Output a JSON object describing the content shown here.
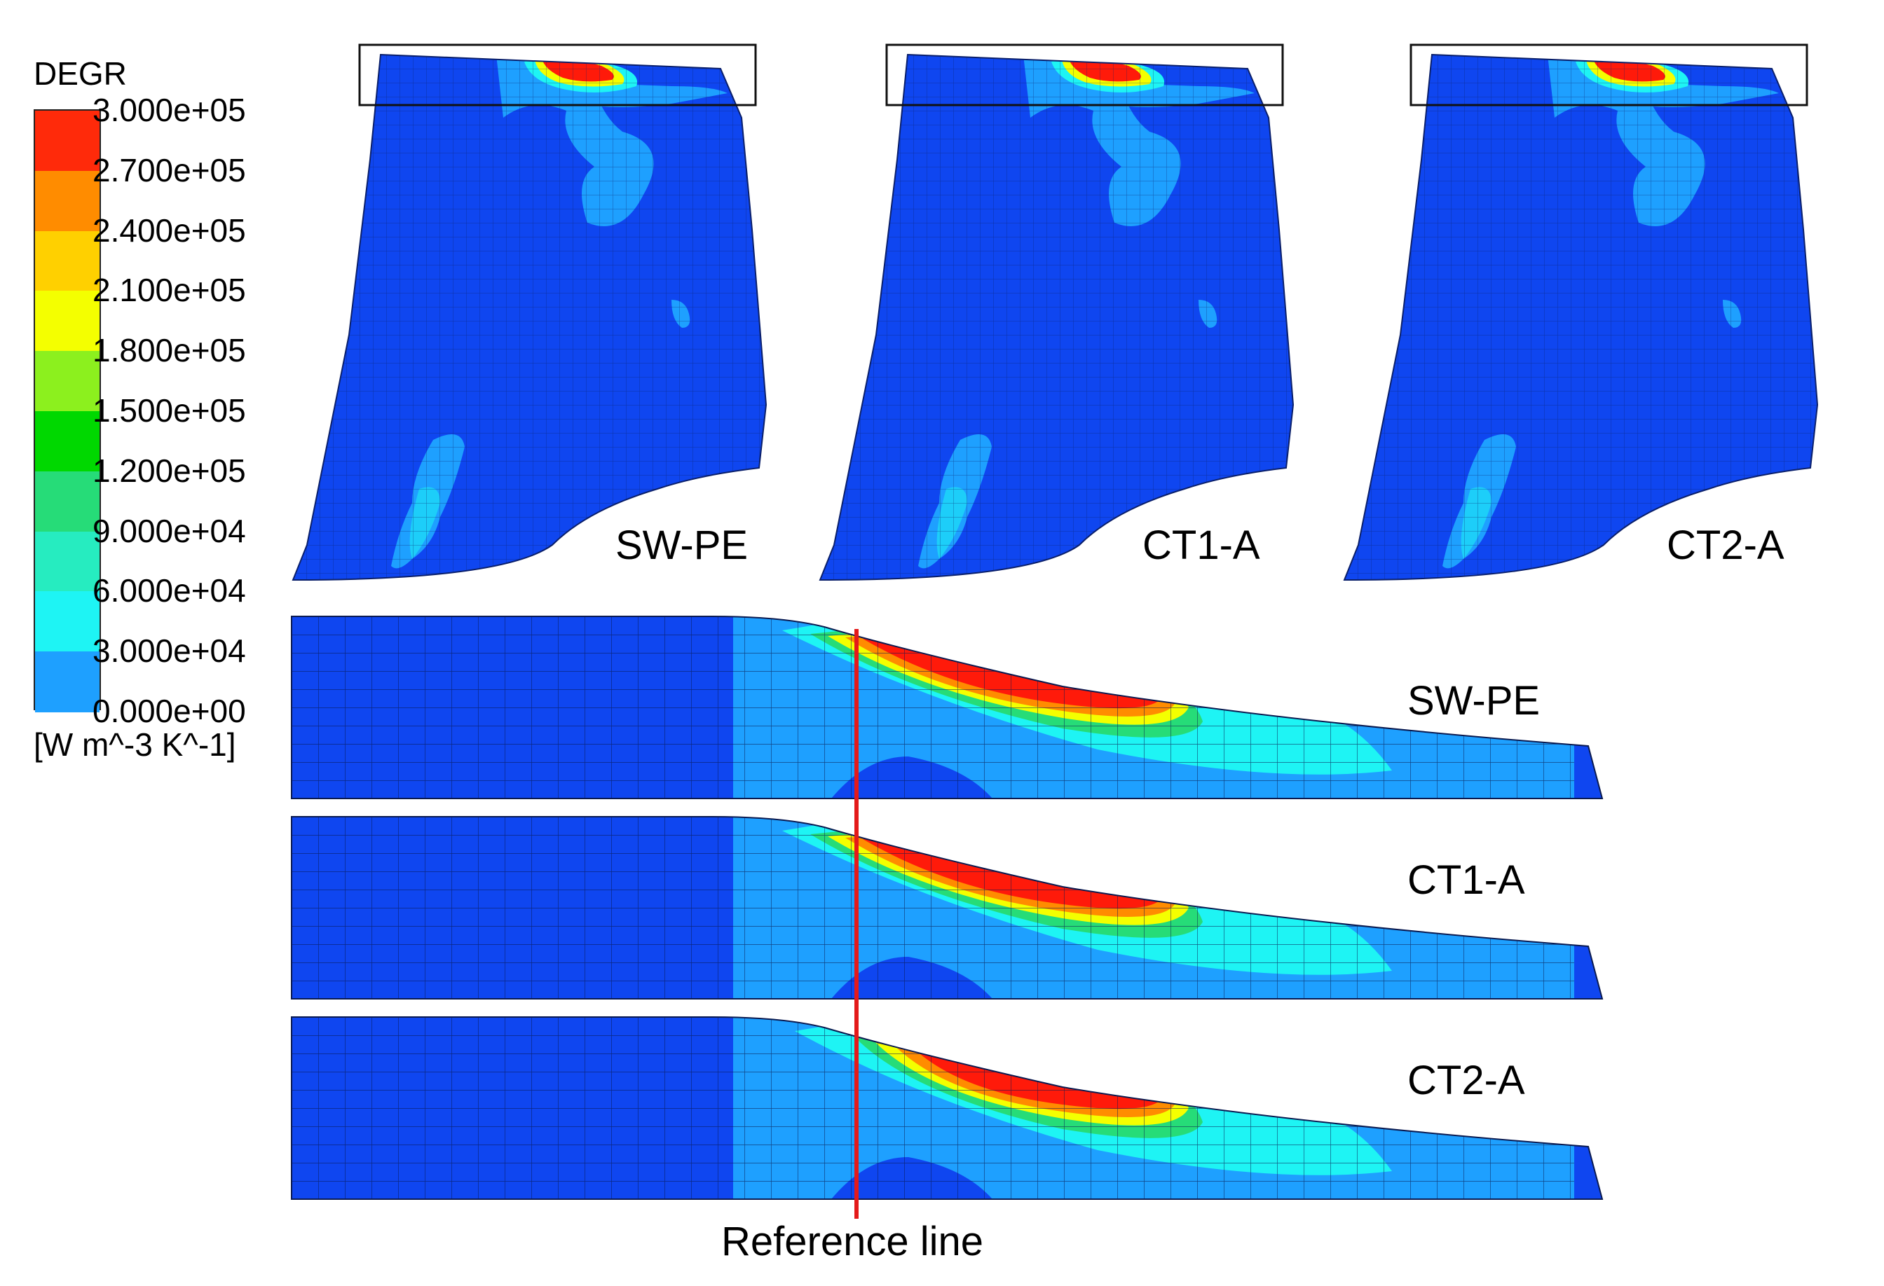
{
  "legend": {
    "title": "DEGR",
    "unit": "[W m^-3 K^-1]",
    "labels": [
      "3.000e+05",
      "2.700e+05",
      "2.400e+05",
      "2.100e+05",
      "1.800e+05",
      "1.500e+05",
      "1.200e+05",
      "9.000e+04",
      "6.000e+04",
      "3.000e+04",
      "0.000e+00"
    ],
    "colors": [
      "#ff2a0a",
      "#ff8c00",
      "#ffd000",
      "#f4ff00",
      "#8cf01e",
      "#00d800",
      "#26dc78",
      "#26ecc0",
      "#1ef4f4",
      "#1ea0ff",
      "#0f46ff"
    ]
  },
  "top_panels": [
    "SW-PE",
    "CT1-A",
    "CT2-A"
  ],
  "bottom_panels": [
    "SW-PE",
    "CT1-A",
    "CT2-A"
  ],
  "reference_line_label": "Reference line",
  "colors": {
    "base_blue": "#0f46f0",
    "light_blue": "#1ea0ff",
    "cyan": "#1ef4f4",
    "green": "#26dc78",
    "yellow": "#f4ff00",
    "orange": "#ff8c00",
    "red": "#ff1a0a",
    "reference_line": "#e41a1a"
  }
}
